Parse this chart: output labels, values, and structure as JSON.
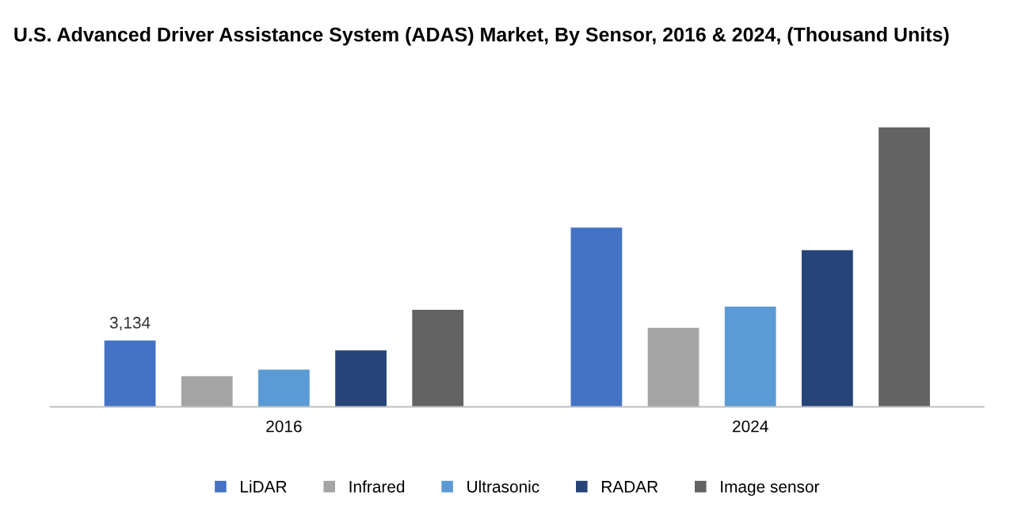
{
  "chart_data": {
    "type": "bar",
    "title": "U.S. Advanced Driver Assistance System (ADAS) Market, By Sensor, 2016 & 2024, (Thousand Units)",
    "categories": [
      "2016",
      "2024"
    ],
    "tick_labels": "x",
    "legend": "bottom",
    "series": [
      {
        "name": "LiDAR",
        "color": "#4472c4",
        "values": [
          3134,
          8480
        ],
        "value_labels": [
          "3,134",
          null
        ]
      },
      {
        "name": "Infrared",
        "color": "#a5a5a5",
        "values": [
          1450,
          3740
        ]
      },
      {
        "name": "Ultrasonic",
        "color": "#5b9bd5",
        "values": [
          1760,
          4740
        ]
      },
      {
        "name": "RADAR",
        "color": "#264478",
        "values": [
          2670,
          7410
        ]
      },
      {
        "name": "Image sensor",
        "color": "#636363",
        "values": [
          4590,
          13220
        ]
      }
    ]
  }
}
